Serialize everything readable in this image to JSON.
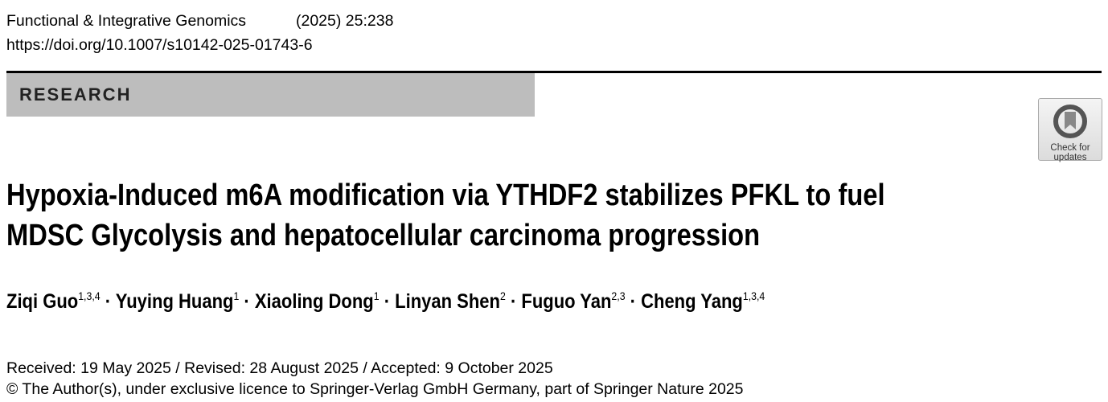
{
  "header": {
    "journal": "Functional & Integrative Genomics",
    "citation": "(2025) 25:238",
    "doi": "https://doi.org/10.1007/s10142-025-01743-6"
  },
  "article_type": "RESEARCH",
  "check_for_updates": {
    "icon": "check-for-updates-icon",
    "line1": "Check for",
    "line2": "updates"
  },
  "title": {
    "line1": "Hypoxia-Induced m6A modification via YTHDF2 stabilizes PFKL to fuel",
    "line2": "MDSC Glycolysis and hepatocellular carcinoma progression"
  },
  "authors": [
    {
      "name": "Ziqi Guo",
      "aff": "1,3,4"
    },
    {
      "name": "Yuying Huang",
      "aff": "1"
    },
    {
      "name": "Xiaoling Dong",
      "aff": "1"
    },
    {
      "name": "Linyan Shen",
      "aff": "2"
    },
    {
      "name": "Fuguo Yan",
      "aff": "2,3"
    },
    {
      "name": "Cheng Yang",
      "aff": "1,3,4"
    }
  ],
  "separator": " · ",
  "dates": "Received: 19 May 2025 / Revised: 28 August 2025 / Accepted: 9 October 2025",
  "copyright": "© The Author(s), under exclusive licence to Springer-Verlag GmbH Germany, part of Springer Nature 2025"
}
